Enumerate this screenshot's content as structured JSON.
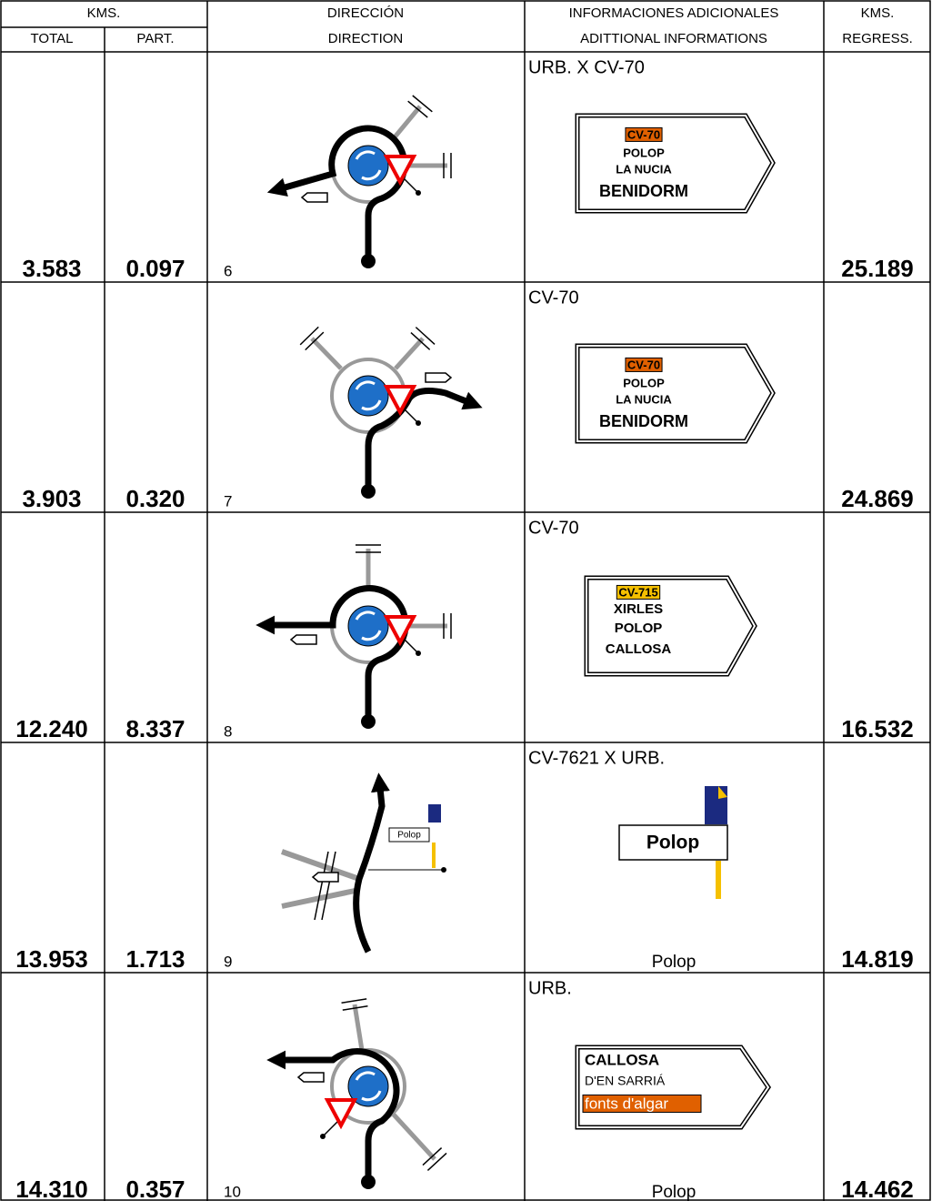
{
  "header": {
    "kms": "KMS.",
    "total": "TOTAL",
    "part": "PART.",
    "direccion": "DIRECCIÓN",
    "direction": "DIRECTION",
    "info_es": "INFORMACIONES ADICIONALES",
    "info_en": "ADITTIONAL INFORMATIONS",
    "kms_regress": "KMS.",
    "regress": "REGRESS."
  },
  "rows": [
    {
      "total": "3.583",
      "part": "0.097",
      "step": "6",
      "info": "URB. X CV-70",
      "sign": [
        "CV-70",
        "POLOP",
        "LA NUCIA",
        "BENIDORM"
      ],
      "regress": "25.189"
    },
    {
      "total": "3.903",
      "part": "0.320",
      "step": "7",
      "info": "CV-70",
      "sign": [
        "CV-70",
        "POLOP",
        "LA NUCIA",
        "BENIDORM"
      ],
      "regress": "24.869"
    },
    {
      "total": "12.240",
      "part": "8.337",
      "step": "8",
      "info": "CV-70",
      "sign": [
        "CV-715",
        "XIRLES",
        "POLOP",
        "CALLOSA"
      ],
      "regress": "16.532"
    },
    {
      "total": "13.953",
      "part": "1.713",
      "step": "9",
      "info": "CV-7621 X URB.",
      "diagram_label": "Polop",
      "sign": [
        "Polop"
      ],
      "caption": "Polop",
      "regress": "14.819"
    },
    {
      "total": "14.310",
      "part": "0.357",
      "step": "10",
      "info": "URB.",
      "sign": [
        "CALLOSA",
        "D'EN SARRIÁ",
        "fonts d'algar"
      ],
      "caption": "Polop",
      "regress": "14.462"
    }
  ]
}
